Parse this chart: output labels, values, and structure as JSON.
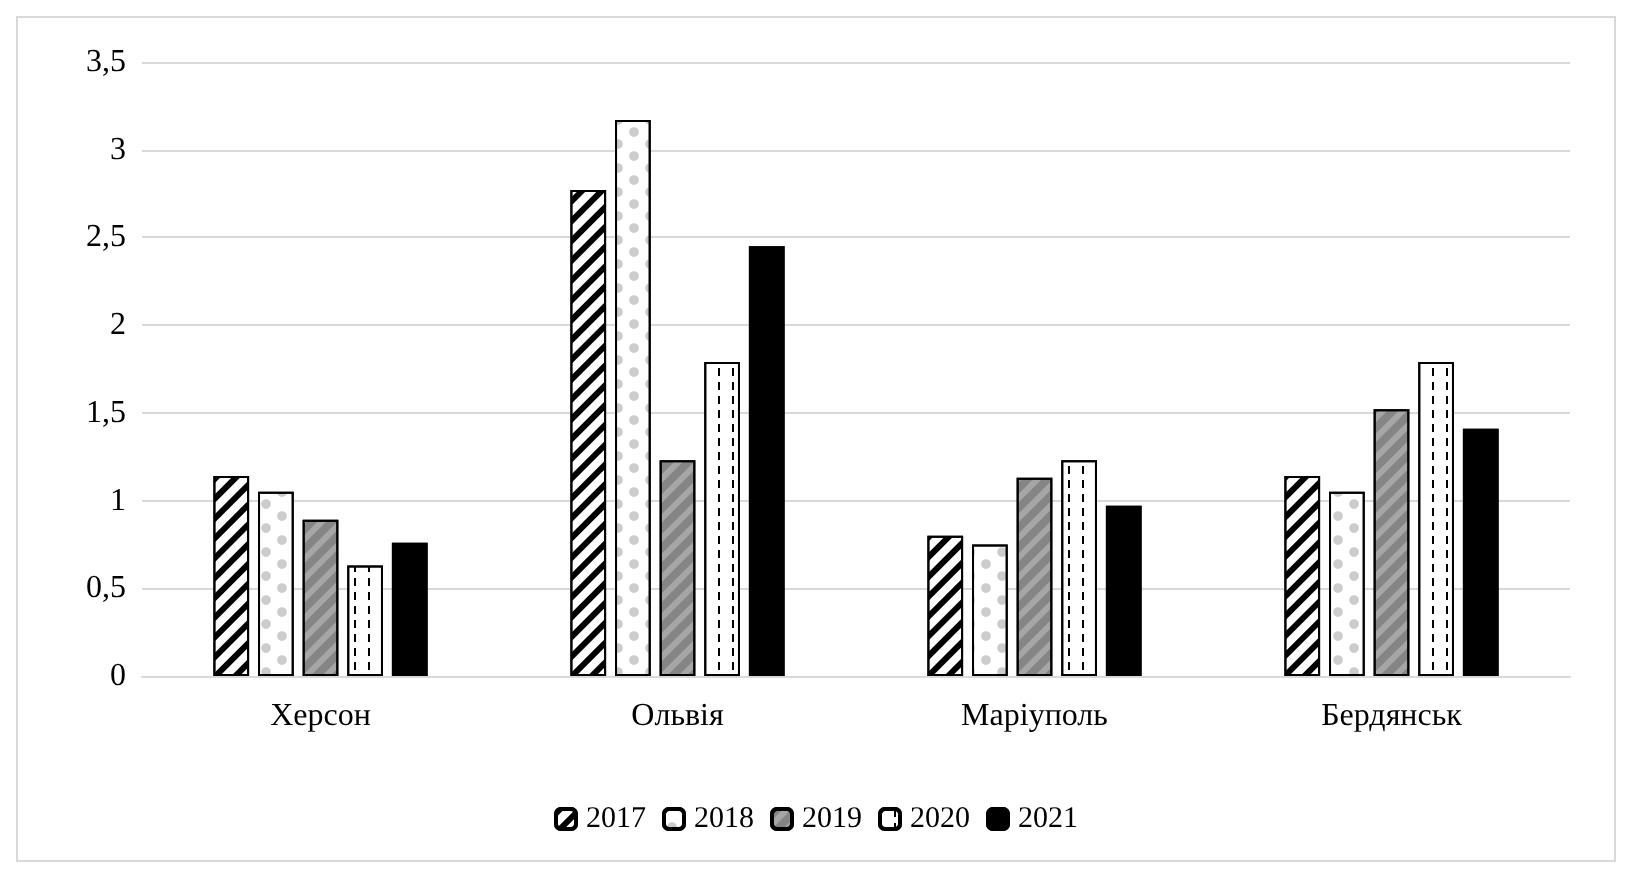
{
  "chart_data": {
    "type": "bar",
    "categories": [
      "Херсон",
      "Ольвія",
      "Маріуполь",
      "Бердянськ"
    ],
    "series": [
      {
        "name": "2017",
        "color": "#ffffff",
        "values": [
          1.14,
          2.77,
          0.8,
          1.14
        ]
      },
      {
        "name": "2018",
        "color": "#ffffff",
        "values": [
          1.05,
          3.17,
          0.75,
          1.05
        ]
      },
      {
        "name": "2019",
        "color": "#a6a6a6",
        "values": [
          0.89,
          1.23,
          1.13,
          1.52
        ]
      },
      {
        "name": "2020",
        "color": "#ffffff",
        "values": [
          0.63,
          1.79,
          1.23,
          1.79
        ]
      },
      {
        "name": "2021",
        "color": "#000000",
        "values": [
          0.76,
          2.45,
          0.97,
          1.41
        ]
      }
    ],
    "ylim": [
      0,
      3.5
    ],
    "yticks": [
      {
        "value": 0,
        "label": "0"
      },
      {
        "value": 0.5,
        "label": "0,5"
      },
      {
        "value": 1,
        "label": "1"
      },
      {
        "value": 1.5,
        "label": "1,5"
      },
      {
        "value": 2,
        "label": "2"
      },
      {
        "value": 2.5,
        "label": "2,5"
      },
      {
        "value": 3,
        "label": "3"
      },
      {
        "value": 3.5,
        "label": "3,5"
      }
    ],
    "grid": "y",
    "legend": "bottom"
  }
}
